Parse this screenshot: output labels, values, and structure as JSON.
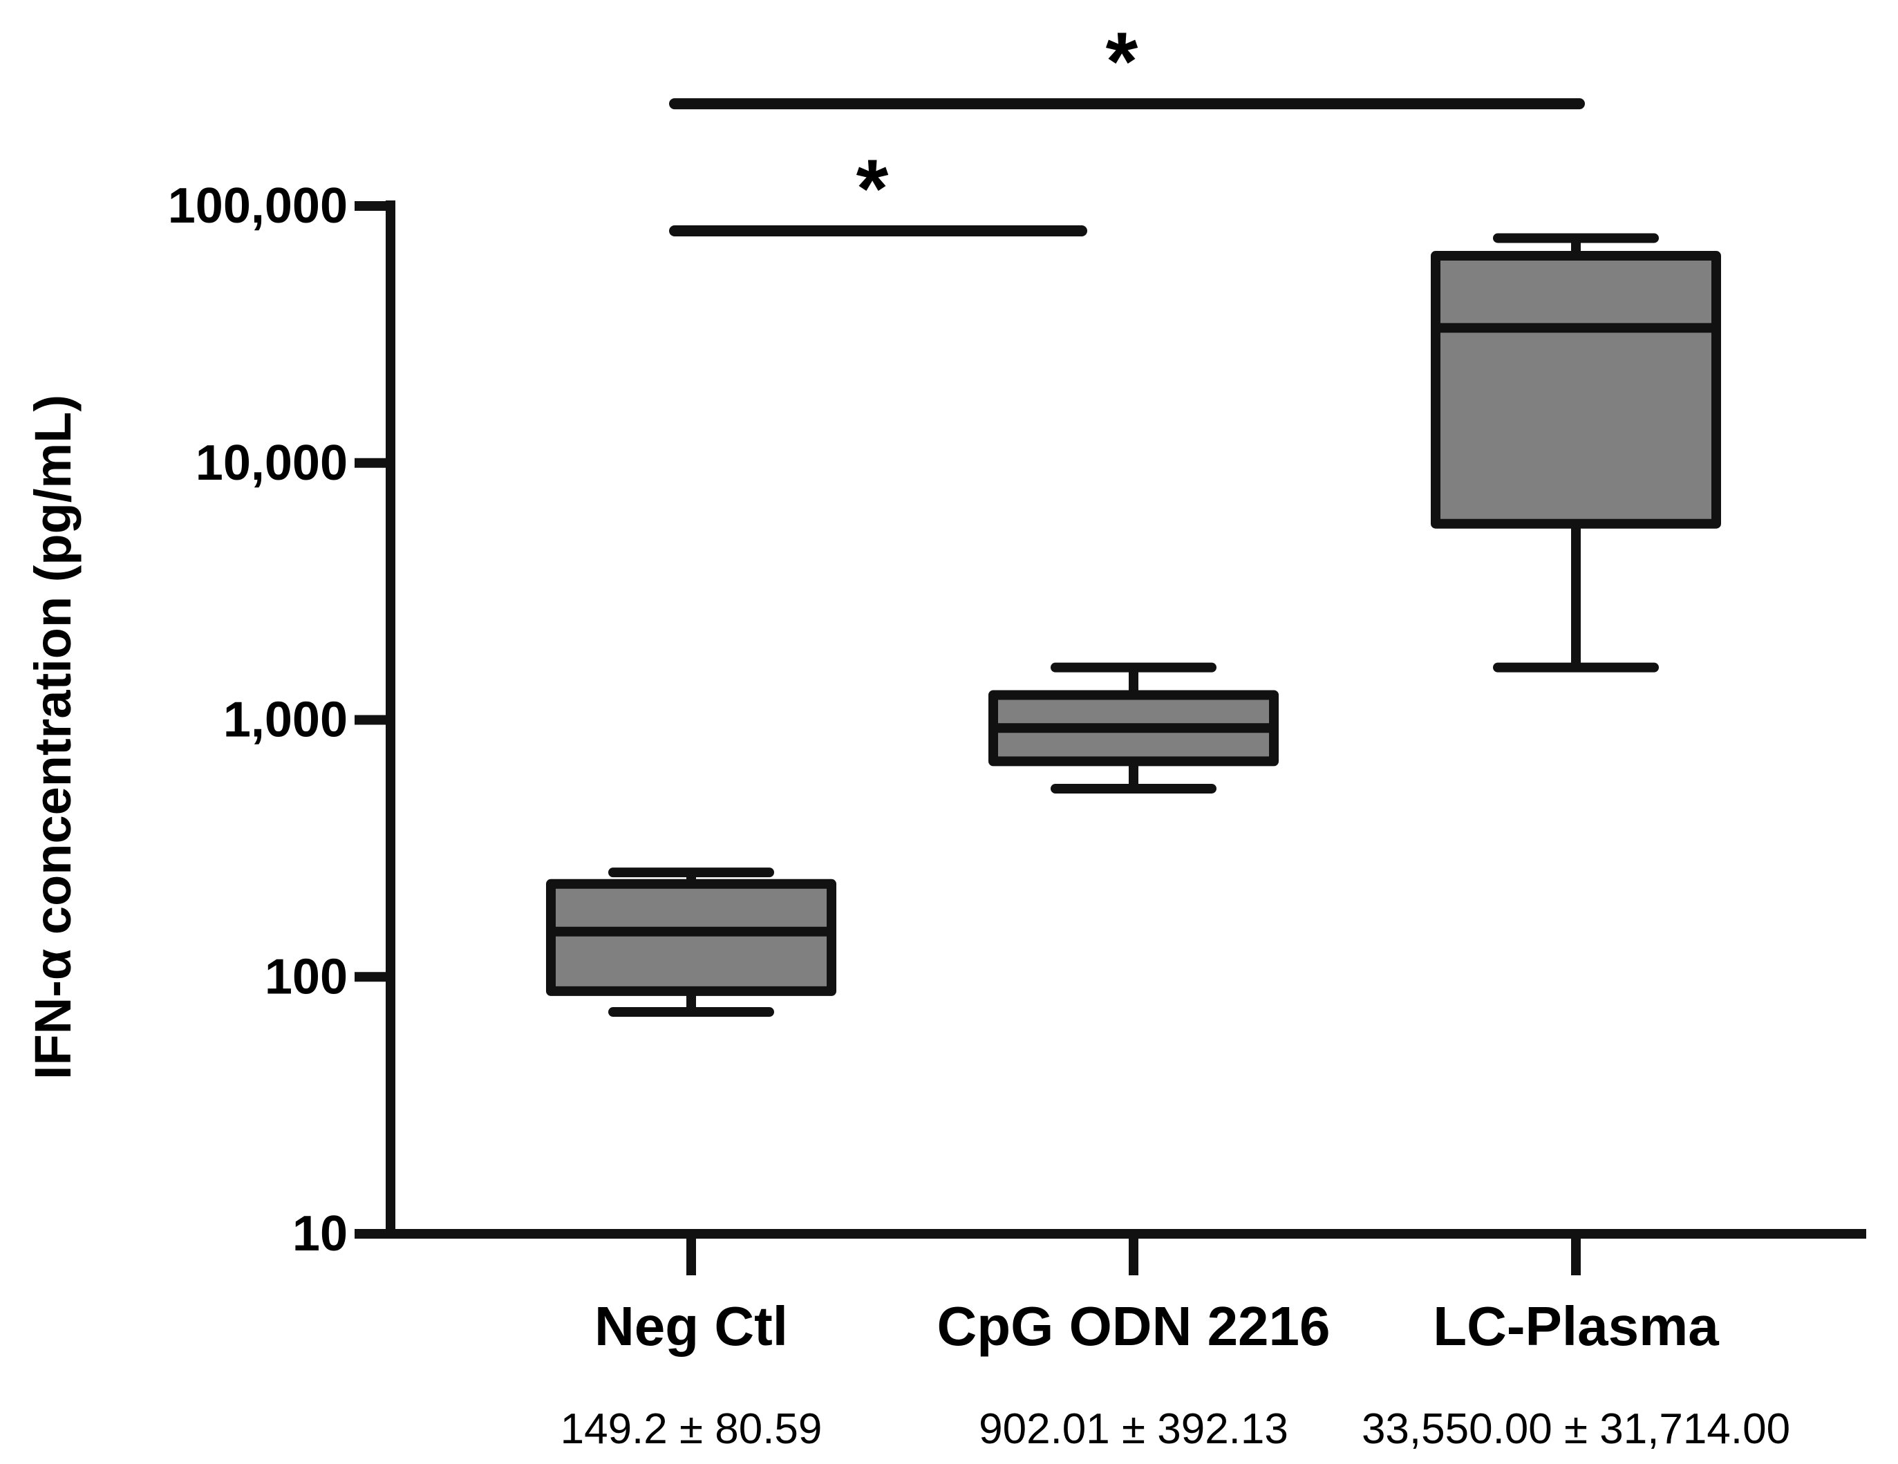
{
  "chart_data": {
    "type": "box",
    "title": "",
    "xlabel": "",
    "ylabel": "IFN-α concentration (pg/mL)",
    "yscale": "log",
    "ylim": [
      10,
      100000
    ],
    "yticks": [
      {
        "value": 10,
        "label": "10"
      },
      {
        "value": 100,
        "label": "100"
      },
      {
        "value": 1000,
        "label": "1,000"
      },
      {
        "value": 10000,
        "label": "10,000"
      },
      {
        "value": 100000,
        "label": "100,000"
      }
    ],
    "categories": [
      "Neg Ctl",
      "CpG ODN 2216",
      "LC-Plasma"
    ],
    "summary_labels": [
      "149.2 ± 80.59",
      "902.01 ± 392.13",
      "33,550.00 ± 31,714.00"
    ],
    "boxes": [
      {
        "category": "Neg Ctl",
        "whisker_low": 73,
        "q1": 88,
        "median": 150,
        "q3": 230,
        "whisker_high": 255
      },
      {
        "category": "CpG ODN 2216",
        "whisker_low": 540,
        "q1": 690,
        "median": 930,
        "q3": 1250,
        "whisker_high": 1600
      },
      {
        "category": "LC-Plasma",
        "whisker_low": 1600,
        "q1": 5800,
        "median": 33550,
        "q3": 64000,
        "whisker_high": 75000
      }
    ],
    "significance": [
      {
        "from": "Neg Ctl",
        "to": "CpG ODN 2216",
        "label": "*",
        "level": 80000
      },
      {
        "from": "Neg Ctl",
        "to": "LC-Plasma",
        "label": "*",
        "level": 250000
      }
    ],
    "colors": {
      "box_fill": "#808080",
      "stroke": "#111111",
      "text": "#000000",
      "background": "#ffffff"
    }
  }
}
